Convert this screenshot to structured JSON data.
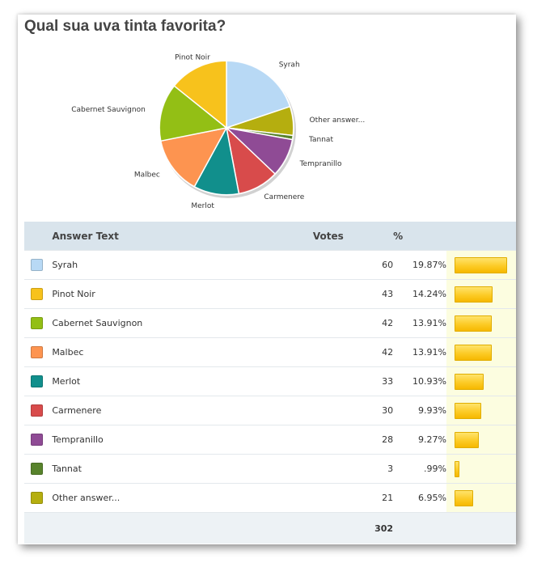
{
  "title": "Qual sua uva tinta favorita?",
  "table": {
    "headers": {
      "answer": "Answer Text",
      "votes": "Votes",
      "percent": "%"
    },
    "rows": [
      {
        "label": "Syrah",
        "votes": "60",
        "percent": "19.87%",
        "color": "#b8d9f5"
      },
      {
        "label": "Pinot Noir",
        "votes": "43",
        "percent": "14.24%",
        "color": "#f7c21c"
      },
      {
        "label": "Cabernet Sauvignon",
        "votes": "42",
        "percent": "13.91%",
        "color": "#93bf15"
      },
      {
        "label": "Malbec",
        "votes": "42",
        "percent": "13.91%",
        "color": "#fd9450"
      },
      {
        "label": "Merlot",
        "votes": "33",
        "percent": "10.93%",
        "color": "#118f8c"
      },
      {
        "label": "Carmenere",
        "votes": "30",
        "percent": "9.93%",
        "color": "#d84b4b"
      },
      {
        "label": "Tempranillo",
        "votes": "28",
        "percent": "9.27%",
        "color": "#8f4b95"
      },
      {
        "label": "Tannat",
        "votes": "3",
        "percent": ".99%",
        "color": "#58832c"
      },
      {
        "label": "Other answer...",
        "votes": "21",
        "percent": "6.95%",
        "color": "#b5ae0f"
      }
    ],
    "total": "302"
  },
  "chart_data": {
    "type": "pie",
    "title": "Qual sua uva tinta favorita?",
    "categories": [
      "Syrah",
      "Other answer...",
      "Tannat",
      "Tempranillo",
      "Carmenere",
      "Merlot",
      "Malbec",
      "Cabernet Sauvignon",
      "Pinot Noir"
    ],
    "values": [
      60,
      21,
      3,
      28,
      30,
      33,
      42,
      42,
      43
    ],
    "colors": [
      "#b8d9f5",
      "#b5ae0f",
      "#58832c",
      "#8f4b95",
      "#d84b4b",
      "#118f8c",
      "#fd9450",
      "#93bf15",
      "#f7c21c"
    ],
    "total": 302
  }
}
